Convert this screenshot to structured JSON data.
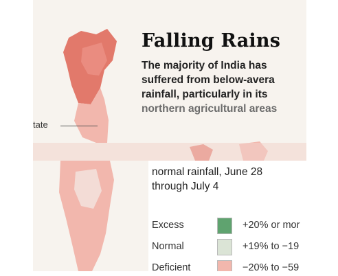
{
  "graphic": {
    "title": "Falling Rains",
    "subtitle_lines": [
      "The majority of India has",
      "suffered from below-avera",
      "rainfall, particularly in its"
    ],
    "subtitle_last": "northern agricultural areas",
    "state_callout": "tate",
    "legend_heading": [
      "normal rainfall, June 28",
      "through July 4"
    ],
    "legend": [
      {
        "label": "Excess",
        "range": "+20% or mor",
        "color": "#5fa36f"
      },
      {
        "label": "Normal",
        "range": "+19% to −19",
        "color": "#dbe4d6"
      },
      {
        "label": "Deficient",
        "range": "−20% to −59",
        "color": "#f2b7ad"
      }
    ],
    "map_colors": {
      "deficient": "#f2b7ad",
      "scanty": "#e2796b",
      "normal": "#f3dcd6",
      "sea": "#f7f3ee"
    }
  }
}
